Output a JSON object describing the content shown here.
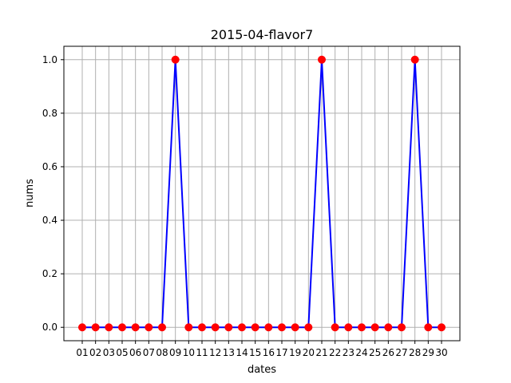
{
  "chart_data": {
    "type": "line",
    "title": "2015-04-flavor7",
    "xlabel": "dates",
    "ylabel": "nums",
    "x": [
      "01",
      "02",
      "03",
      "05",
      "06",
      "07",
      "08",
      "09",
      "10",
      "11",
      "12",
      "13",
      "14",
      "15",
      "16",
      "17",
      "19",
      "20",
      "21",
      "22",
      "23",
      "24",
      "25",
      "26",
      "27",
      "28",
      "29",
      "30"
    ],
    "series": [
      {
        "values": [
          0,
          0,
          0,
          0,
          0,
          0,
          0,
          1,
          0,
          0,
          0,
          0,
          0,
          0,
          0,
          0,
          0,
          0,
          1,
          0,
          0,
          0,
          0,
          0,
          0,
          1,
          0,
          0
        ],
        "line_color": "#0000ff",
        "marker_color": "#ff0000"
      }
    ],
    "ylim": [
      -0.05,
      1.05
    ],
    "yticks": [
      "0.0",
      "0.2",
      "0.4",
      "0.6",
      "0.8",
      "1.0"
    ],
    "grid": true
  }
}
